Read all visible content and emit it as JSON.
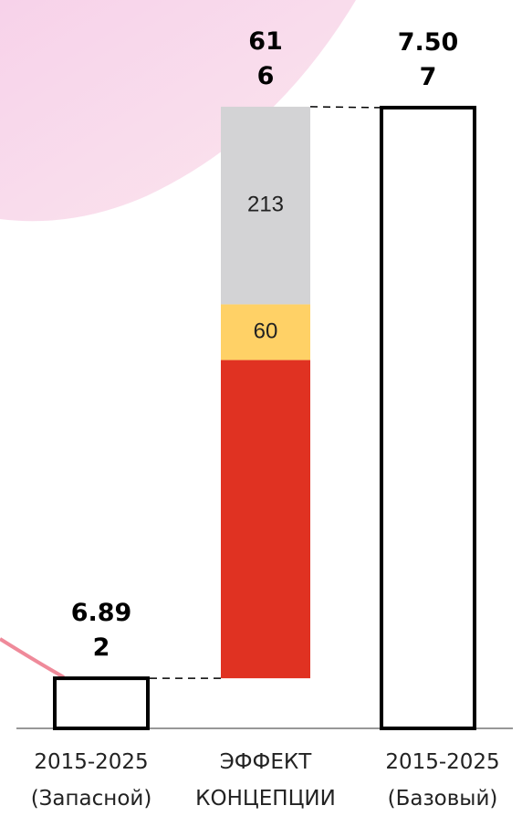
{
  "chart_data": {
    "type": "waterfall",
    "categories": [
      "2015-2025 (Запасной)",
      "ЭФФЕКТ КОНЦЕПЦИИ",
      "2015-2025 (Базовый)"
    ],
    "values": [
      6892,
      616,
      7507
    ],
    "value_labels": [
      "6.892",
      "616",
      "7.507"
    ],
    "segments": {
      "values": [
        343,
        60,
        213
      ],
      "value_labels": [
        null,
        "60",
        "213"
      ],
      "colors": [
        "#e03222",
        "#ffd166",
        "#d3d3d5"
      ]
    },
    "ylim": [
      6838,
      7623
    ]
  }
}
